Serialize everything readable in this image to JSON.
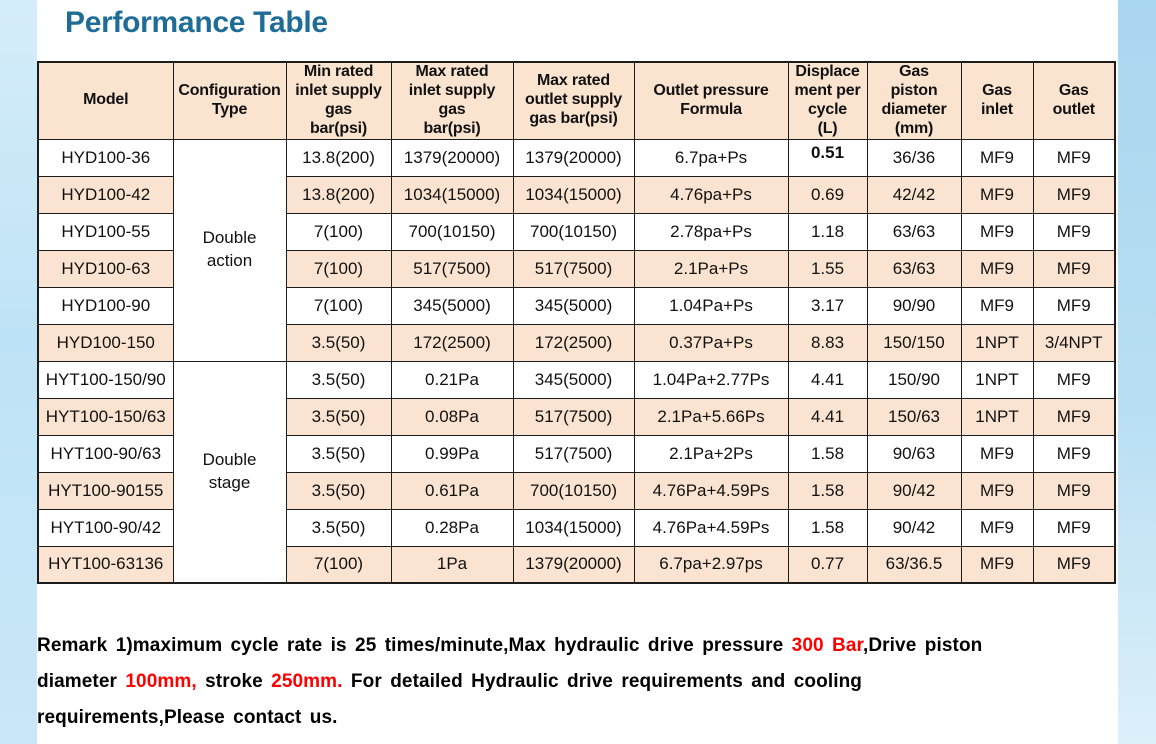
{
  "page": {
    "title": "Performance Table"
  },
  "colors": {
    "title": "#1F6D96",
    "header_fill": "#FAE3CF",
    "zebra_fill": "#FAE4D1",
    "side_strip_blue": "#BFE3F6",
    "remark_highlight": "#FF0000"
  },
  "table": {
    "headers": [
      "Model",
      "Configuration\nType",
      "Min rated\ninlet supply\ngas\nbar(psi)",
      "Max rated\ninlet supply\ngas\nbar(psi)",
      "Max  rated\noutlet supply\ngas  bar(psi)",
      "Outlet pressure\nFormula",
      "Displace\nment per\ncycle\n(L)",
      "Gas\npiston\ndiameter\n(mm)",
      "Gas\ninlet",
      "Gas\noutlet"
    ],
    "groups": [
      {
        "config_type": "Double\naction",
        "rows": [
          [
            "HYD100-36",
            "13.8(200)",
            "1379(20000)",
            "1379(20000)",
            "6.7pa+Ps",
            "0.51",
            "36/36",
            "MF9",
            "MF9"
          ],
          [
            "HYD100-42",
            "13.8(200)",
            "1034(15000)",
            "1034(15000)",
            "4.76pa+Ps",
            "0.69",
            "42/42",
            "MF9",
            "MF9"
          ],
          [
            "HYD100-55",
            "7(100)",
            "700(10150)",
            "700(10150)",
            "2.78pa+Ps",
            "1.18",
            "63/63",
            "MF9",
            "MF9"
          ],
          [
            "HYD100-63",
            "7(100)",
            "517(7500)",
            "517(7500)",
            "2.1Pa+Ps",
            "1.55",
            "63/63",
            "MF9",
            "MF9"
          ],
          [
            "HYD100-90",
            "7(100)",
            "345(5000)",
            "345(5000)",
            "1.04Pa+Ps",
            "3.17",
            "90/90",
            "MF9",
            "MF9"
          ],
          [
            "HYD100-150",
            "3.5(50)",
            "172(2500)",
            "172(2500)",
            "0.37Pa+Ps",
            "8.83",
            "150/150",
            "1NPT",
            "3/4NPT"
          ]
        ]
      },
      {
        "config_type": "Double\nstage",
        "rows": [
          [
            "HYT100-150/90",
            "3.5(50)",
            "0.21Pa",
            "345(5000)",
            "1.04Pa+2.77Ps",
            "4.41",
            "150/90",
            "1NPT",
            "MF9"
          ],
          [
            "HYT100-150/63",
            "3.5(50)",
            "0.08Pa",
            "517(7500)",
            "2.1Pa+5.66Ps",
            "4.41",
            "150/63",
            "1NPT",
            "MF9"
          ],
          [
            "HYT100-90/63",
            "3.5(50)",
            "0.99Pa",
            "517(7500)",
            "2.1Pa+2Ps",
            "1.58",
            "90/63",
            "MF9",
            "MF9"
          ],
          [
            "HYT100-90155",
            "3.5(50)",
            "0.61Pa",
            "700(10150)",
            "4.76Pa+4.59Ps",
            "1.58",
            "90/42",
            "MF9",
            "MF9"
          ],
          [
            "HYT100-90/42",
            "3.5(50)",
            "0.28Pa",
            "1034(15000)",
            "4.76Pa+4.59Ps",
            "1.58",
            "90/42",
            "MF9",
            "MF9"
          ],
          [
            "HYT100-63136",
            "7(100)",
            "1Pa",
            "1379(20000)",
            "6.7pa+2.97ps",
            "0.77",
            "63/36.5",
            "MF9",
            "MF9"
          ]
        ]
      }
    ]
  },
  "remark": {
    "lines": [
      {
        "segments": [
          {
            "text": "Remark 1)maximum cycle rate is 25 times/minute,Max  hydraulic  drive  pressure  ",
            "color": "#000000"
          },
          {
            "text": "300 Bar",
            "color": "#FF0000"
          },
          {
            "text": ",Drive piston",
            "color": "#000000"
          }
        ]
      },
      {
        "segments": [
          {
            "text": "diameter ",
            "color": "#000000"
          },
          {
            "text": "100mm,",
            "color": "#FF0000"
          },
          {
            "text": " stroke ",
            "color": "#000000"
          },
          {
            "text": "250mm.",
            "color": "#FF0000"
          },
          {
            "text": " For  detailed  Hydraulic  drive  requirements  and  cooling",
            "color": "#000000"
          }
        ]
      },
      {
        "segments": [
          {
            "text": "requirements,Please  contact  us.",
            "color": "#000000"
          }
        ]
      }
    ]
  }
}
